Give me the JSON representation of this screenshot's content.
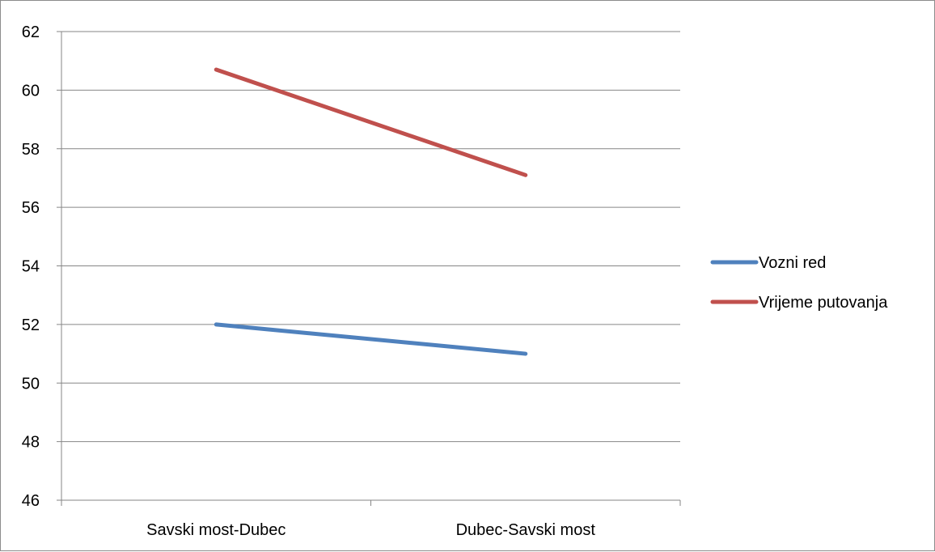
{
  "chart_data": {
    "type": "line",
    "title": "",
    "xlabel": "",
    "ylabel": "",
    "categories": [
      "Savski most-Dubec",
      "Dubec-Savski most"
    ],
    "ylim": [
      46,
      62
    ],
    "yticks": [
      46,
      48,
      50,
      52,
      54,
      56,
      58,
      60,
      62
    ],
    "grid": true,
    "legend_position": "right",
    "series": [
      {
        "name": "Vozni red",
        "values": [
          52,
          51
        ],
        "color": "#4f81bd"
      },
      {
        "name": "Vrijeme putovanja",
        "values": [
          60.7,
          57.1
        ],
        "color": "#c0504d"
      }
    ]
  }
}
